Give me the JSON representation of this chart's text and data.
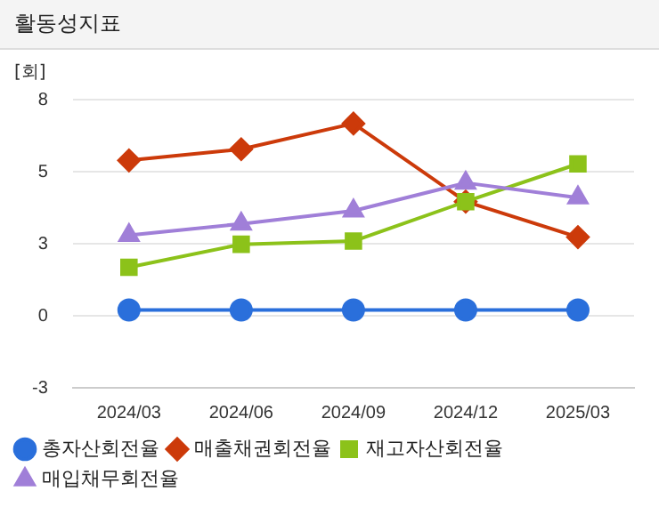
{
  "chart_data": {
    "type": "line",
    "title": "활동성지표",
    "ylabel": "[회]",
    "categories": [
      "2024/03",
      "2024/06",
      "2024/09",
      "2024/12",
      "2025/03"
    ],
    "series": [
      {
        "name": "총자산회전율",
        "color": "#2a6fdb",
        "marker": "circle",
        "values": [
          0.2,
          0.2,
          0.2,
          0.2,
          0.2
        ]
      },
      {
        "name": "매출채권회전율",
        "color": "#cc3a0a",
        "marker": "diamond",
        "values": [
          5.39,
          5.78,
          6.67,
          3.96,
          2.73
        ]
      },
      {
        "name": "재고자산회전율",
        "color": "#8cc21a",
        "marker": "square",
        "values": [
          1.68,
          2.48,
          2.59,
          3.96,
          5.27
        ]
      },
      {
        "name": "매입채무회전율",
        "color": "#a07fd8",
        "marker": "triangle",
        "values": [
          2.79,
          3.19,
          3.64,
          4.61,
          4.1
        ]
      }
    ],
    "ylim": [
      -2.5,
      7.5
    ],
    "yticks": [
      {
        "value": -2.5,
        "label": "-3"
      },
      {
        "value": 0,
        "label": "0"
      },
      {
        "value": 2.5,
        "label": "3"
      },
      {
        "value": 5,
        "label": "5"
      },
      {
        "value": 7.5,
        "label": "8"
      }
    ],
    "grid": "y",
    "legend": "bottom"
  }
}
